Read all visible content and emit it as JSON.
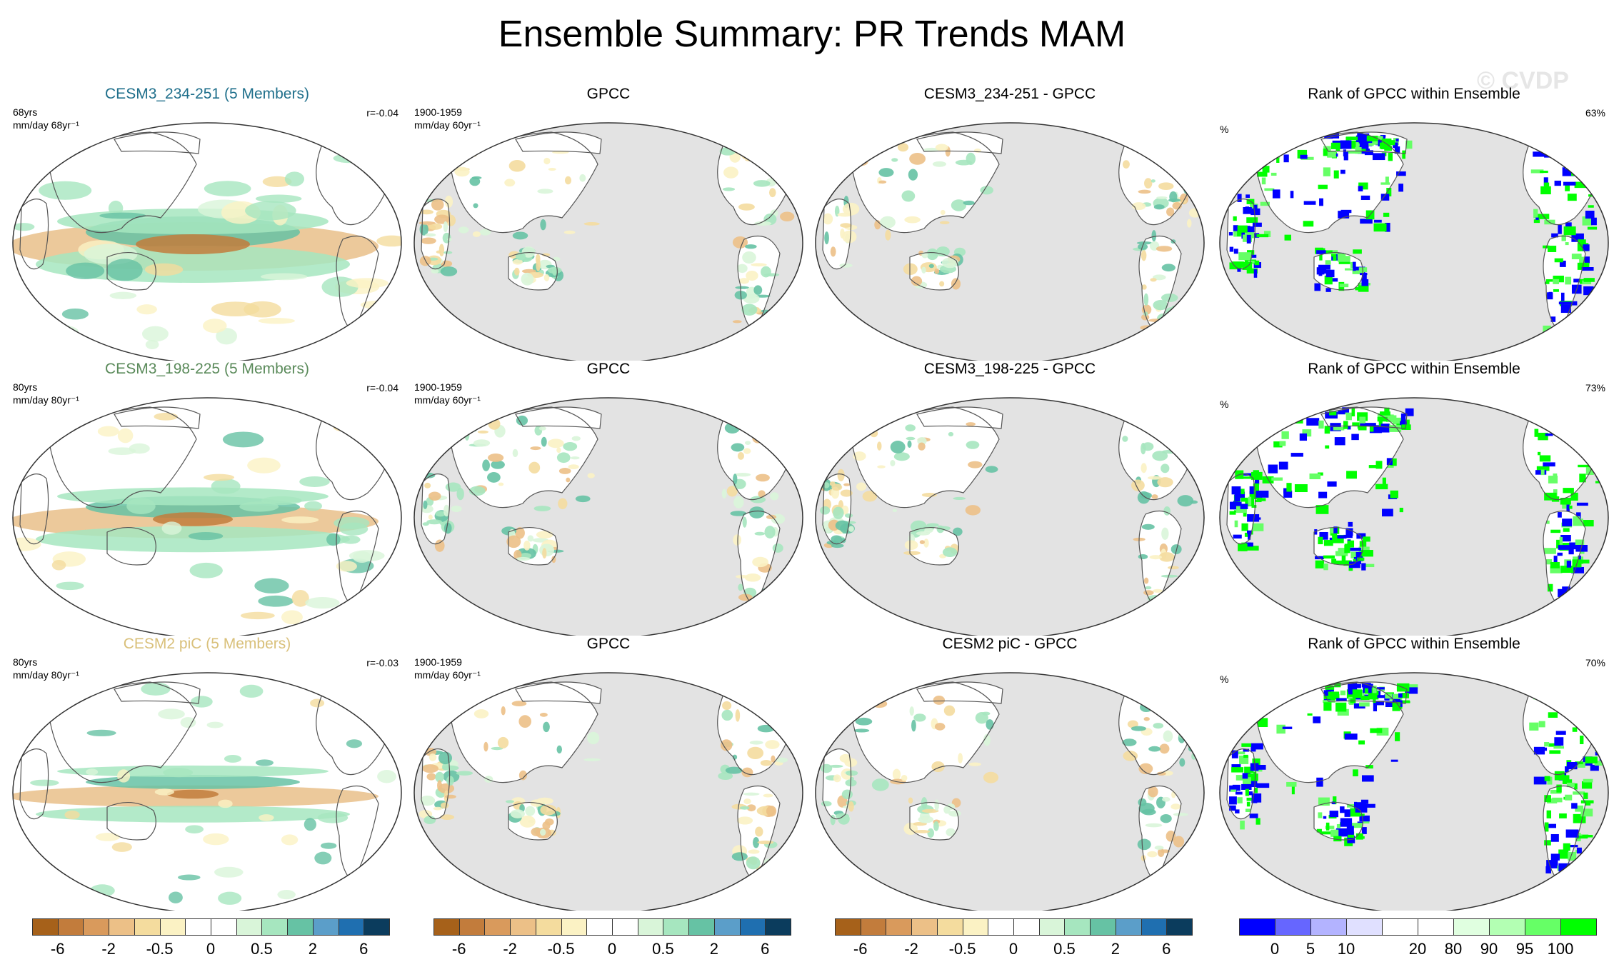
{
  "title": "Ensemble Summary: PR Trends MAM",
  "watermark": "© CVDP",
  "rows": [
    {
      "model": {
        "title": "CESM3_234-251 (5 Members)",
        "title_color": "#1f6f8b",
        "years": "68yrs",
        "units": "mm/day 68yr⁻¹",
        "corr": "r=-0.04",
        "pattern": "strong"
      },
      "obs": {
        "title": "GPCC",
        "period": "1900-1959",
        "units": "mm/day 60yr⁻¹"
      },
      "diff": {
        "title": "CESM3_234-251 - GPCC"
      },
      "rank": {
        "title": "Rank of GPCC within Ensemble",
        "units": "%",
        "pct": "63%"
      }
    },
    {
      "model": {
        "title": "CESM3_198-225 (5 Members)",
        "title_color": "#5a8a5a",
        "years": "80yrs",
        "units": "mm/day 80yr⁻¹",
        "corr": "r=-0.04",
        "pattern": "medium"
      },
      "obs": {
        "title": "GPCC",
        "period": "1900-1959",
        "units": "mm/day 60yr⁻¹"
      },
      "diff": {
        "title": "CESM3_198-225 - GPCC"
      },
      "rank": {
        "title": "Rank of GPCC within Ensemble",
        "units": "%",
        "pct": "73%"
      }
    },
    {
      "model": {
        "title": "CESM2 piC (5 Members)",
        "title_color": "#d9c07a",
        "years": "80yrs",
        "units": "mm/day 80yr⁻¹",
        "corr": "r=-0.03",
        "pattern": "weak"
      },
      "obs": {
        "title": "GPCC",
        "period": "1900-1959",
        "units": "mm/day 60yr⁻¹"
      },
      "diff": {
        "title": "CESM2 piC - GPCC"
      },
      "rank": {
        "title": "Rank of GPCC within Ensemble",
        "units": "%",
        "pct": "70%"
      }
    }
  ],
  "colorbars": {
    "trend": {
      "colors": [
        "#a6611a",
        "#c27c3c",
        "#d99a5c",
        "#ecc087",
        "#f4dc9e",
        "#fbf2c4",
        "#ffffff",
        "#ffffff",
        "#d9f5d9",
        "#a6e6bf",
        "#66c2a4",
        "#5b9ec9",
        "#1f6fb0",
        "#0b3c5d"
      ],
      "labels": [
        "-6",
        "-2",
        "-0.5",
        "0",
        "0.5",
        "2",
        "6"
      ]
    },
    "rank": {
      "colors": [
        "#0000ff",
        "#6666ff",
        "#b3b3ff",
        "#e0e0ff",
        "#ffffff",
        "#ffffff",
        "#e0ffe0",
        "#b3ffb3",
        "#66ff66",
        "#00ff00"
      ],
      "labels": [
        "0",
        "5",
        "10",
        "20",
        "80",
        "90",
        "95",
        "100"
      ]
    }
  }
}
